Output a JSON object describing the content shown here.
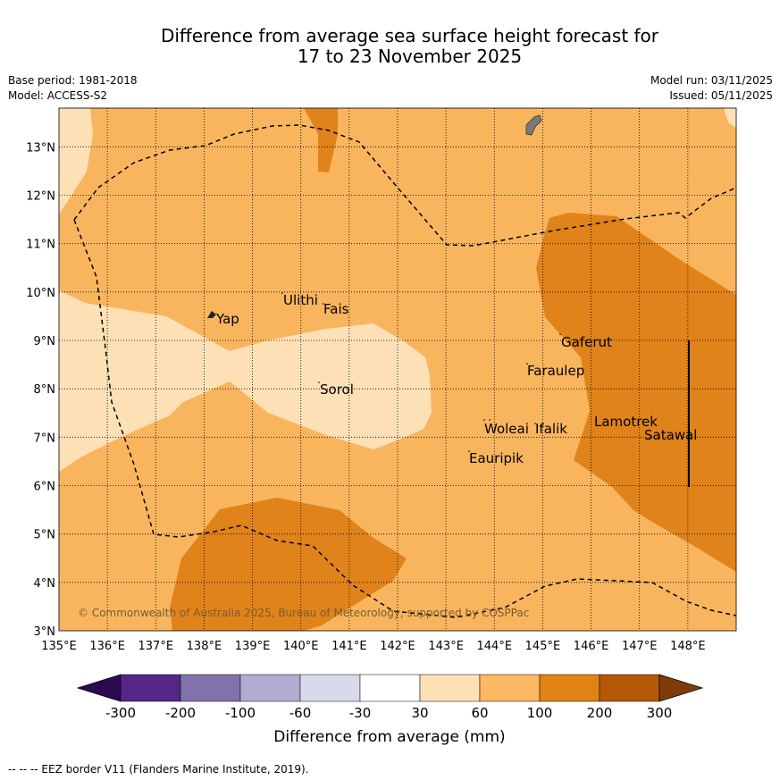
{
  "header": {
    "title_line1": "Difference from average sea surface height forecast for",
    "title_line2": "17 to 23 November 2025",
    "base_period": "Base period: 1981-2018",
    "model": "Model: ACCESS-S2",
    "model_run": "Model run: 03/11/2025",
    "issued": "Issued: 05/11/2025"
  },
  "map": {
    "lon_range": [
      135,
      149
    ],
    "lat_range": [
      3,
      13.8
    ],
    "lon_ticks": [
      "135°E",
      "136°E",
      "137°E",
      "138°E",
      "139°E",
      "140°E",
      "141°E",
      "142°E",
      "143°E",
      "144°E",
      "145°E",
      "146°E",
      "147°E",
      "148°E"
    ],
    "lat_ticks": [
      "3°N",
      "4°N",
      "5°N",
      "6°N",
      "7°N",
      "8°N",
      "9°N",
      "10°N",
      "11°N",
      "12°N",
      "13°N"
    ],
    "places": [
      {
        "name": "Yap"
      },
      {
        "name": "Ulithi"
      },
      {
        "name": "Fais"
      },
      {
        "name": "Sorol"
      },
      {
        "name": "Gaferut"
      },
      {
        "name": "Faraulep"
      },
      {
        "name": "Woleai"
      },
      {
        "name": "Ifalik"
      },
      {
        "name": "Eauripik"
      },
      {
        "name": "Lamotrek"
      },
      {
        "name": "Satawal"
      }
    ],
    "copyright": "© Commonwealth of Australia 2025, Bureau of Meteorology, supported by COSPPac",
    "colors": {
      "band_30_60": "#fde0b5",
      "band_60_100": "#f9b55e",
      "band_100_200": "#e0831a",
      "land": "#7a7a7a"
    }
  },
  "colorbar": {
    "label": "Difference from average (mm)",
    "tick_labels": [
      "-300",
      "-200",
      "-100",
      "-60",
      "-30",
      "30",
      "60",
      "100",
      "200",
      "300"
    ],
    "colors": [
      "#2d0a4f",
      "#542788",
      "#8073ac",
      "#b2abd2",
      "#d8daeb",
      "#ffffff",
      "#fee0b6",
      "#fdb863",
      "#e08214",
      "#b35806",
      "#7f3b08"
    ]
  },
  "footnote": "--  --  -- EEZ border V11 (Flanders Marine Institute, 2019)."
}
